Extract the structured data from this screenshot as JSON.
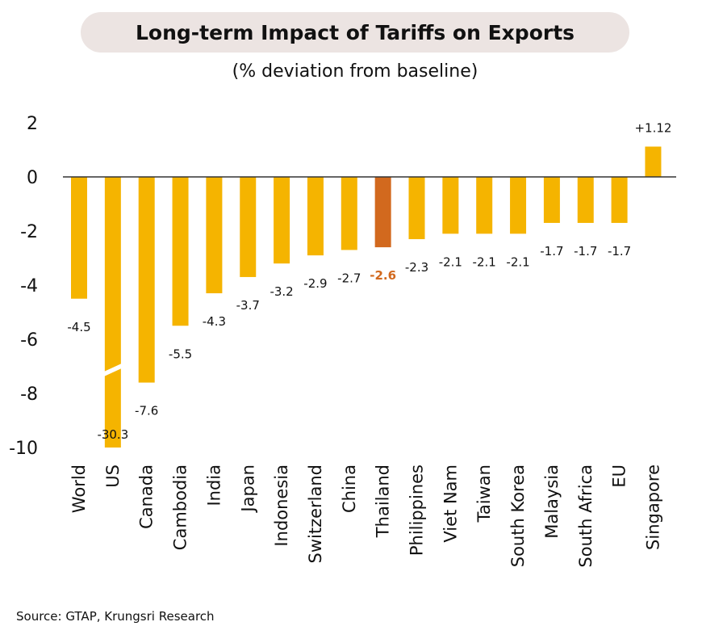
{
  "header": {
    "title": "Long-term Impact of Tariffs on Exports",
    "subtitle": "(% deviation from baseline)"
  },
  "footer": {
    "source": "Source: GTAP, Krungsri Research"
  },
  "colors": {
    "bar": "#f5b400",
    "highlight": "#d2691e",
    "axis": "#333333"
  },
  "chart_data": {
    "type": "bar",
    "title": "Long-term Impact of Tariffs on Exports",
    "subtitle": "(% deviation from baseline)",
    "categories": [
      "World",
      "US",
      "Canada",
      "Cambodia",
      "India",
      "Japan",
      "Indonesia",
      "Switzerland",
      "China",
      "Thailand",
      "Philippines",
      "Viet Nam",
      "Taiwan",
      "South Korea",
      "Malaysia",
      "South Africa",
      "EU",
      "Singapore"
    ],
    "values": [
      -4.5,
      -30.3,
      -7.6,
      -5.5,
      -4.3,
      -3.7,
      -3.2,
      -2.9,
      -2.7,
      -2.6,
      -2.3,
      -2.1,
      -2.1,
      -2.1,
      -1.7,
      -1.7,
      -1.7,
      1.12
    ],
    "labels": [
      "-4.5",
      "-30.3",
      "-7.6",
      "-5.5",
      "-4.3",
      "-3.7",
      "-3.2",
      "-2.9",
      "-2.7",
      "-2.6",
      "-2.3",
      "-2.1",
      "-2.1",
      "-2.1",
      "-1.7",
      "-1.7",
      "-1.7",
      "+1.12"
    ],
    "highlight": "Thailand",
    "ylim": [
      -10,
      2
    ],
    "yticks": [
      "2",
      "0",
      "-2",
      "-4",
      "-6",
      "-8",
      "-10"
    ],
    "axis_break": "US",
    "grid": false,
    "legend": "none"
  }
}
